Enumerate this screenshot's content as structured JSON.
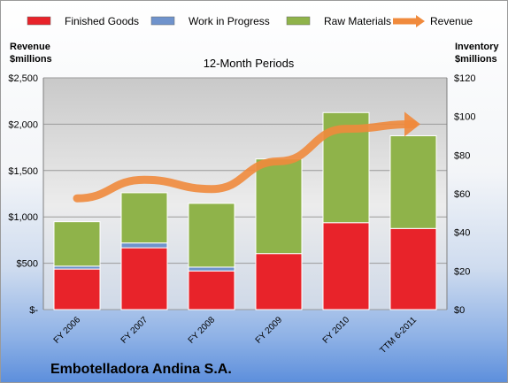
{
  "chart_data": {
    "type": "bar",
    "stacked": true,
    "title": "12-Month Periods",
    "company": "Embotelladora Andina S.A.",
    "categories": [
      "FY 2006",
      "FY 2007",
      "FY 2008",
      "FY 2009",
      "FY 2010",
      "TTM 6-2011"
    ],
    "left_axis": {
      "label_line1": "Revenue",
      "label_line2": "$millions",
      "ylim": [
        0,
        2500
      ],
      "ticks": [
        0,
        500,
        1000,
        1500,
        2000,
        2500
      ],
      "tick_labels": [
        "$-",
        "$500",
        "$1,000",
        "$1,500",
        "$2,000",
        "$2,500"
      ]
    },
    "right_axis": {
      "label_line1": "Inventory",
      "label_line2": "$millions",
      "ylim": [
        0,
        120
      ],
      "ticks": [
        0,
        20,
        40,
        60,
        80,
        100,
        120
      ],
      "tick_labels": [
        "$0",
        "$20",
        "$40",
        "$60",
        "$80",
        "$100",
        "$120"
      ]
    },
    "series": [
      {
        "name": "Finished Goods",
        "axis": "right",
        "kind": "bar",
        "color": "#e8232a",
        "values": [
          21,
          32,
          20,
          29,
          45,
          42
        ]
      },
      {
        "name": "Work in Progress",
        "axis": "right",
        "kind": "bar",
        "color": "#6f93cc",
        "values": [
          1.5,
          2.5,
          2,
          0,
          0,
          0
        ]
      },
      {
        "name": "Raw Materials",
        "axis": "right",
        "kind": "bar",
        "color": "#8fb34a",
        "values": [
          23,
          26,
          33,
          49,
          57,
          48
        ]
      },
      {
        "name": "Revenue",
        "axis": "left",
        "kind": "line",
        "color": "#f08a3c",
        "values": [
          1200,
          1400,
          1300,
          1600,
          1950,
          2000
        ]
      }
    ],
    "grid": true,
    "legend": "top"
  }
}
